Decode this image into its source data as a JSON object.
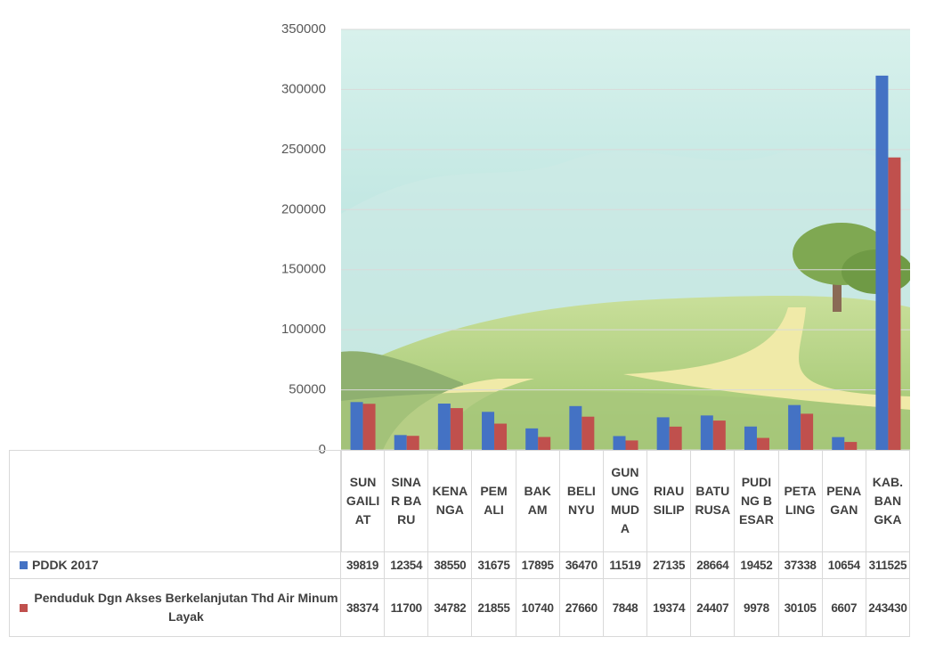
{
  "chart_data": {
    "type": "bar",
    "categories": [
      "SUNGAILIAT",
      "SINAR BARU",
      "KENANGA",
      "PEMALI",
      "BAKAM",
      "BELINYU",
      "GUNUNG MUDA",
      "RIAU SILIP",
      "BATURUSA",
      "PUDING BESAR",
      "PETALING",
      "PENAGAN",
      "KAB. BANGKA"
    ],
    "series": [
      {
        "name": "PDDK 2017",
        "color": "#4472c4",
        "values": [
          39819,
          12354,
          38550,
          31675,
          17895,
          36470,
          11519,
          27135,
          28664,
          19452,
          37338,
          10654,
          311525
        ]
      },
      {
        "name": "Penduduk Dgn Akses Berkelanjutan Thd Air Minum Layak",
        "color": "#c0504d",
        "values": [
          38374,
          11700,
          34782,
          21855,
          10740,
          27660,
          7848,
          19374,
          24407,
          9978,
          30105,
          6607,
          243430
        ]
      }
    ],
    "ylim": [
      0,
      350000
    ],
    "yticks": [
      0,
      50000,
      100000,
      150000,
      200000,
      250000,
      300000,
      350000
    ],
    "grid": true,
    "data_table": true
  }
}
